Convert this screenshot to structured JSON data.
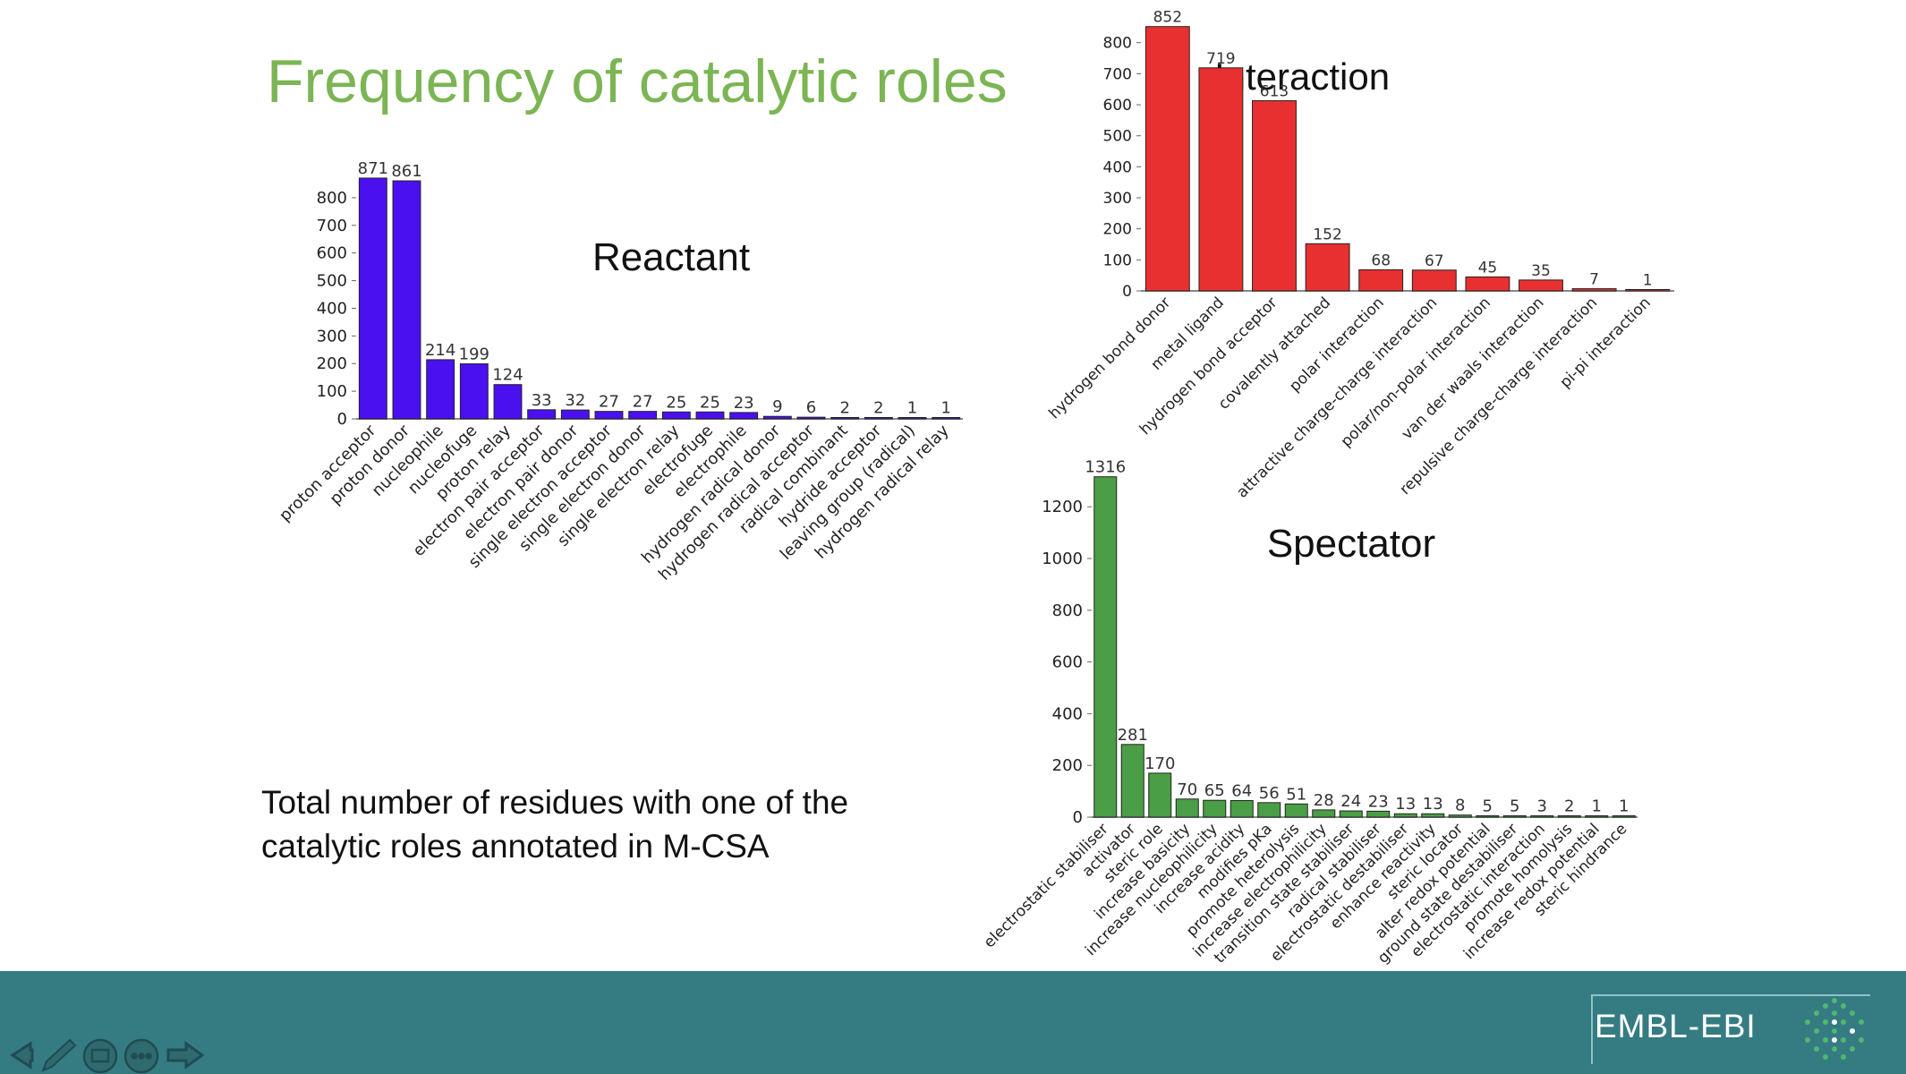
{
  "slide": {
    "title": "Frequency of catalytic roles",
    "footnote": "Total number of residues with one of the catalytic roles annotated in M-CSA",
    "logo_text": "EMBL-EBI"
  },
  "colors": {
    "title": "#7cb554",
    "reactant": "#4a10f0",
    "interaction": "#e83030",
    "spectator": "#4a9e45",
    "footer": "#357b82"
  },
  "nav_icons": [
    "arrow-left-icon",
    "pen-icon",
    "slides-icon",
    "more-icon",
    "arrow-right-icon"
  ],
  "chart_data": [
    {
      "type": "bar",
      "title": "Reactant",
      "categories": [
        "proton acceptor",
        "proton donor",
        "nucleophile",
        "nucleofuge",
        "proton relay",
        "electron pair acceptor",
        "electron pair donor",
        "single electron acceptor",
        "single electron donor",
        "single electron relay",
        "electrofuge",
        "electrophile",
        "hydrogen radical donor",
        "hydrogen radical acceptor",
        "radical combinant",
        "hydride acceptor",
        "leaving group (radical)",
        "hydrogen radical relay"
      ],
      "values": [
        871,
        861,
        214,
        199,
        124,
        33,
        32,
        27,
        27,
        25,
        25,
        23,
        9,
        6,
        2,
        2,
        1,
        1
      ],
      "yticks": [
        0,
        100,
        200,
        300,
        400,
        500,
        600,
        700,
        800
      ],
      "ylim": [
        0,
        900
      ],
      "color": "#4a10f0"
    },
    {
      "type": "bar",
      "title": "Interaction",
      "categories": [
        "hydrogen bond donor",
        "metal ligand",
        "hydrogen bond acceptor",
        "covalently attached",
        "polar interaction",
        "attractive charge-charge interaction",
        "polar/non-polar interaction",
        "van der waals interaction",
        "repulsive charge-charge interaction",
        "pi-pi interaction"
      ],
      "values": [
        852,
        719,
        613,
        152,
        68,
        67,
        45,
        35,
        7,
        1
      ],
      "yticks": [
        0,
        100,
        200,
        300,
        400,
        500,
        600,
        700,
        800
      ],
      "ylim": [
        0,
        880
      ],
      "color": "#e83030"
    },
    {
      "type": "bar",
      "title": "Spectator",
      "categories": [
        "electrostatic stabiliser",
        "activator",
        "steric role",
        "increase basicity",
        "increase nucleophilicity",
        "increase acidity",
        "modifies pKa",
        "promote heterolysis",
        "increase electrophilicity",
        "transition state stabiliser",
        "radical stabiliser",
        "electrostatic destabiliser",
        "enhance reactivity",
        "steric locator",
        "alter redox potential",
        "ground state destabiliser",
        "electrostatic interaction",
        "promote homolysis",
        "increase redox potential",
        "steric hindrance"
      ],
      "values": [
        1316,
        281,
        170,
        70,
        65,
        64,
        56,
        51,
        28,
        24,
        23,
        13,
        13,
        8,
        5,
        5,
        3,
        2,
        1,
        1
      ],
      "yticks": [
        0,
        200,
        400,
        600,
        800,
        1000,
        1200
      ],
      "ylim": [
        0,
        1360
      ],
      "color": "#4a9e45"
    }
  ]
}
